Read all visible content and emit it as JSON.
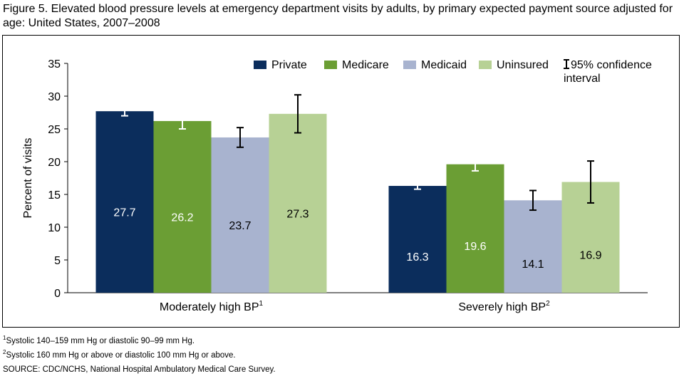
{
  "figure": {
    "title": "Figure 5. Elevated blood pressure levels at emergency department visits by adults, by primary expected payment source adjusted for age: United States, 2007–2008"
  },
  "footnotes": [
    {
      "mark": "1",
      "text": "Systolic 140–159 mm Hg or diastolic 90–99 mm Hg."
    },
    {
      "mark": "2",
      "text": "Systolic 160 mm Hg or above or diastolic 100 mm Hg or above."
    }
  ],
  "source": "SOURCE: CDC/NCHS, National Hospital Ambulatory Medical Care Survey.",
  "chart_data": {
    "type": "bar",
    "title": "",
    "xlabel": "",
    "ylabel": "Percent of visits",
    "ylim": [
      0,
      35
    ],
    "yticks": [
      0,
      5,
      10,
      15,
      20,
      25,
      30,
      35
    ],
    "grid": false,
    "legend_position": "top-right",
    "categories": [
      {
        "label": "Moderately high BP",
        "sup": "1"
      },
      {
        "label": "Severely high BP",
        "sup": "2"
      }
    ],
    "series": [
      {
        "name": "Private",
        "color": "#0b2d5c",
        "values": [
          27.7,
          16.3
        ],
        "ci": [
          [
            27.0,
            28.4
          ],
          [
            15.8,
            16.8
          ]
        ],
        "label_color": "#ffffff",
        "whisker_color": "#ffffff"
      },
      {
        "name": "Medicare",
        "color": "#6b9e34",
        "values": [
          26.2,
          19.6
        ],
        "ci": [
          [
            25.0,
            27.4
          ],
          [
            18.6,
            20.6
          ]
        ],
        "label_color": "#ffffff",
        "whisker_color": "#ffffff"
      },
      {
        "name": "Medicaid",
        "color": "#a8b3cf",
        "values": [
          23.7,
          14.1
        ],
        "ci": [
          [
            22.2,
            25.2
          ],
          [
            12.6,
            15.6
          ]
        ],
        "label_color": "#000000",
        "whisker_color": "#000000"
      },
      {
        "name": "Uninsured",
        "color": "#b7d195",
        "values": [
          27.3,
          16.9
        ],
        "ci": [
          [
            24.4,
            30.2
          ],
          [
            13.7,
            20.1
          ]
        ],
        "label_color": "#000000",
        "whisker_color": "#000000"
      }
    ],
    "ci_legend": {
      "symbol": "I",
      "line1": "95% confidence",
      "line2": "interval"
    }
  }
}
